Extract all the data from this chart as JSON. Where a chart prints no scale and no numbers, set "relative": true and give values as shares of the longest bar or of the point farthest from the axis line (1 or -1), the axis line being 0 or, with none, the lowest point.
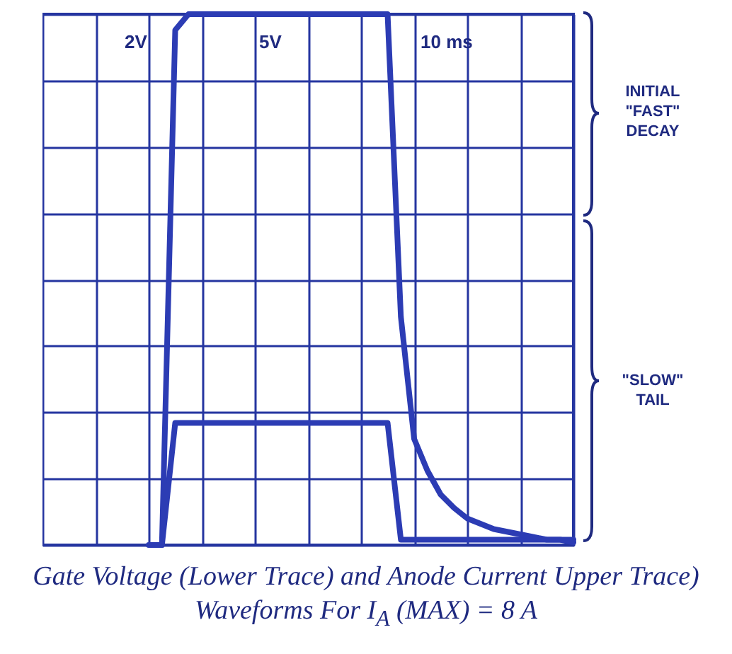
{
  "chart_data": {
    "type": "line",
    "relative": true,
    "grid": true,
    "title": "Gate Voltage (Lower Trace) and Anode Current Upper Trace) Waveforms For I$_{A}$ (MAX) = 8 A",
    "annotations": [
      "2V",
      "5V",
      "10 ms",
      "INITIAL \"FAST\" DECAY",
      "\"SLOW\" TAIL"
    ],
    "categories": [
      null,
      null,
      null,
      null,
      null,
      null,
      null,
      null,
      null,
      null,
      null,
      null,
      null,
      null,
      null,
      null,
      null,
      null,
      null,
      null,
      null,
      null,
      null,
      null,
      null,
      null,
      null,
      null,
      null,
      null,
      null,
      null,
      null,
      null,
      null,
      null,
      null,
      null,
      null,
      null,
      null
    ],
    "series": [
      {
        "color": "#2c3cb4",
        "values": [
          null,
          null,
          null,
          null,
          null,
          null,
          null,
          null,
          0,
          0,
          0.23,
          0.23,
          0.23,
          0.23,
          0.23,
          0.23,
          0.23,
          0.23,
          0.23,
          0.23,
          0.23,
          0.23,
          0.23,
          0.23,
          0.23,
          0.23,
          0.23,
          0.01,
          0.01,
          0.01,
          0.01,
          0.01,
          0.01,
          0.01,
          0.01,
          0.01,
          0.01,
          0.01,
          0.01,
          0.01,
          0.01
        ]
      },
      {
        "color": "#2c3cb4",
        "values": [
          null,
          null,
          null,
          null,
          null,
          null,
          null,
          null,
          null,
          0,
          0.97,
          1,
          1,
          1,
          1,
          1,
          1,
          1,
          1,
          1,
          1,
          1,
          1,
          1,
          1,
          1,
          1,
          0.43,
          0.2,
          0.14,
          0.095,
          0.07,
          0.05,
          0.04,
          0.03,
          0.025,
          0.02,
          0.015,
          0.01,
          0.01,
          0.005
        ]
      }
    ]
  }
}
